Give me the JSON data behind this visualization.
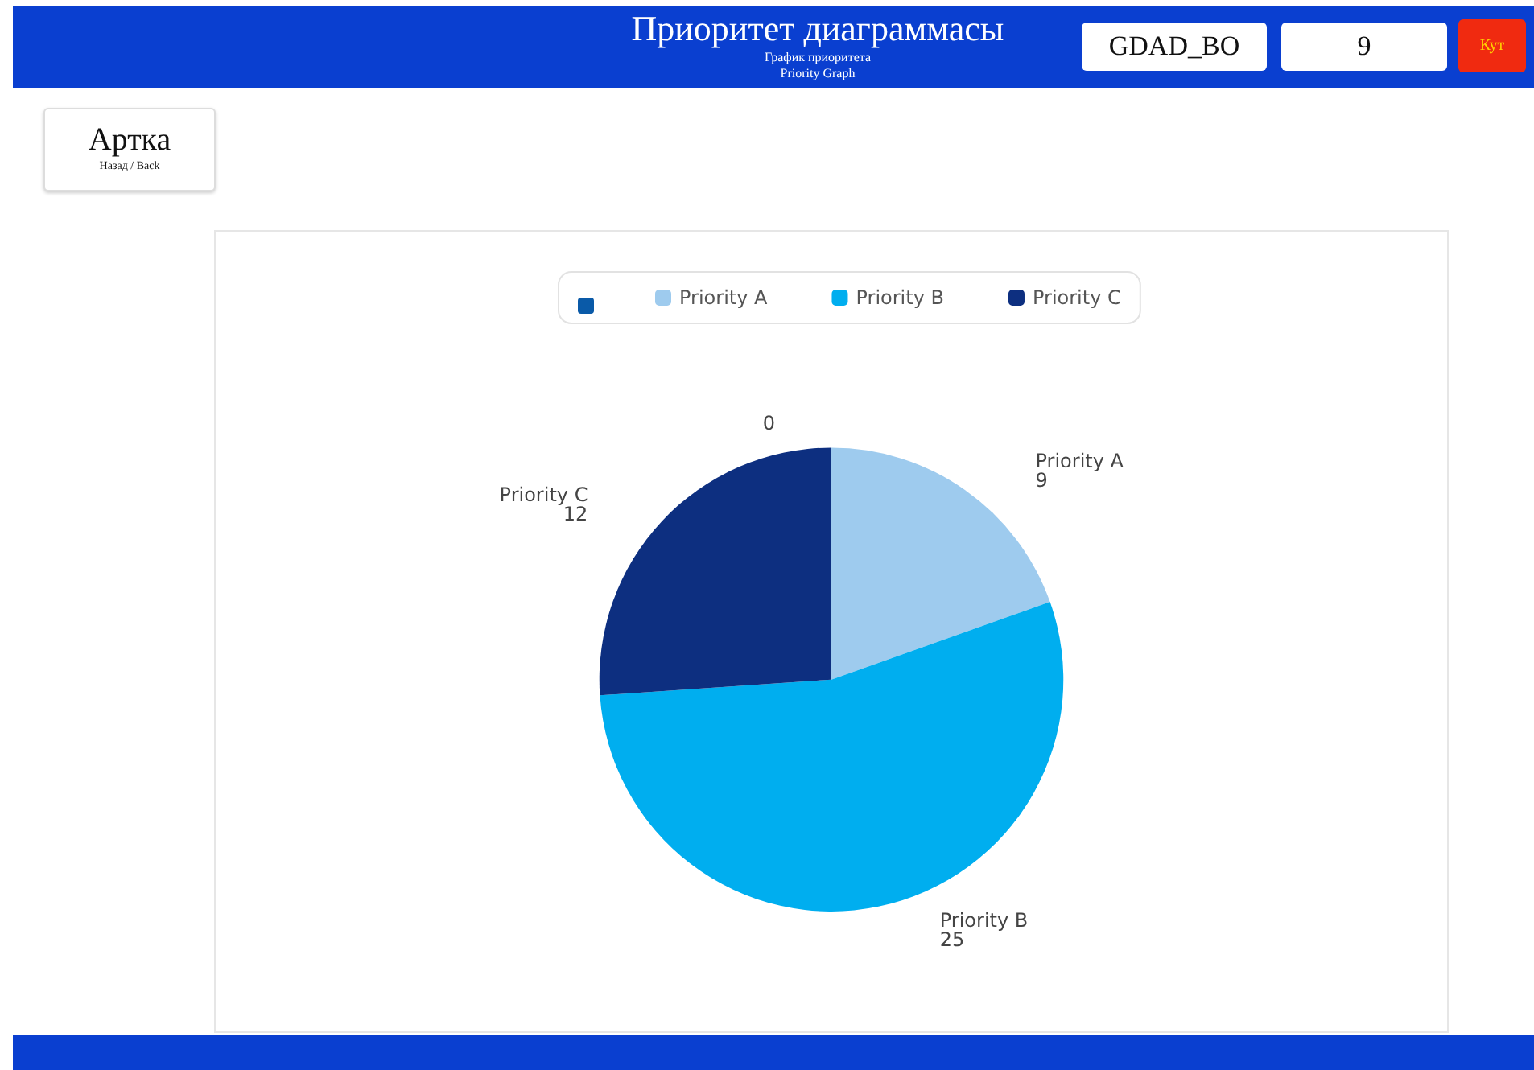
{
  "chart_data": {
    "type": "pie",
    "title": "Приоритет диаграммасы",
    "subtitle": "График приоритета\nPriority Graph",
    "annotations": [
      "GDAD_BO",
      "9",
      "Кут",
      "Артка",
      "Назад / Back"
    ],
    "categories": [
      null,
      "Priority A",
      "Priority B",
      "Priority C"
    ],
    "values": [
      0,
      9,
      25,
      12
    ],
    "colors": [
      "#0a5aa8",
      "#9ecbee",
      "#00aeef",
      "#0d2f80"
    ],
    "value_labels": [
      "0",
      "9",
      "25",
      "12"
    ],
    "legend": "top"
  }
}
